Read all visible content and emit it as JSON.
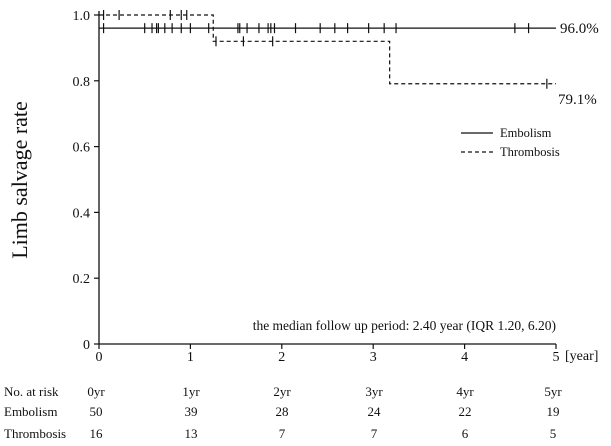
{
  "chart_data": {
    "type": "line",
    "ylabel": "Limb salvage rate",
    "x_unit": "[year]",
    "xlim": [
      0,
      5
    ],
    "ylim": [
      0,
      1.0
    ],
    "x_ticks": [
      "0",
      "1",
      "2",
      "3",
      "4",
      "5"
    ],
    "y_ticks": [
      "0",
      "0.2",
      "0.4",
      "0.6",
      "0.8",
      "1.0"
    ],
    "annotation": "the median follow up period: 2.40 year (IQR 1.20, 6.20)",
    "legend_position": "right",
    "series": [
      {
        "name": "Embolism",
        "style": "solid",
        "steps": [
          [
            0.0,
            0.96
          ],
          [
            5.0,
            0.96
          ]
        ],
        "censored": [
          0.05,
          0.5,
          0.58,
          0.63,
          0.65,
          0.72,
          0.8,
          0.9,
          1.0,
          1.2,
          1.52,
          1.54,
          1.62,
          1.75,
          1.85,
          1.88,
          1.92,
          2.15,
          2.42,
          2.58,
          2.72,
          2.95,
          3.12,
          3.25,
          4.55,
          4.7
        ],
        "end_label": "96.0%"
      },
      {
        "name": "Thrombosis",
        "style": "dashed",
        "steps": [
          [
            0.0,
            1.0
          ],
          [
            1.25,
            0.92
          ],
          [
            3.18,
            0.791
          ],
          [
            5.0,
            0.791
          ]
        ],
        "censored": [
          0.05,
          0.22,
          0.78,
          0.9,
          0.96,
          1.28,
          1.58,
          1.9,
          4.9
        ],
        "end_label": "79.1%"
      }
    ]
  },
  "risk_table": {
    "header": "No. at risk",
    "times": [
      "0yr",
      "1yr",
      "2yr",
      "3yr",
      "4yr",
      "5yr"
    ],
    "rows": [
      {
        "label": "Embolism",
        "values": [
          "50",
          "39",
          "28",
          "24",
          "22",
          "19"
        ]
      },
      {
        "label": "Thrombosis",
        "values": [
          "16",
          "13",
          "7",
          "7",
          "6",
          "5"
        ]
      }
    ]
  }
}
